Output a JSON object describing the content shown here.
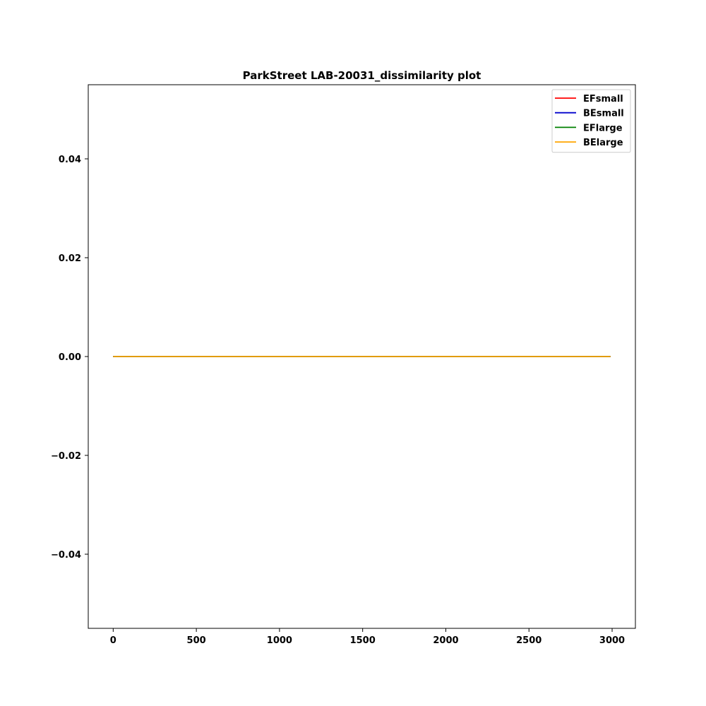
{
  "chart_data": {
    "type": "line",
    "title": "ParkStreet LAB-20031_dissimilarity plot",
    "xlabel": "",
    "ylabel": "",
    "xlim": [
      -150,
      3140
    ],
    "ylim": [
      -0.055,
      0.055
    ],
    "x_ticks": [
      0,
      500,
      1000,
      1500,
      2000,
      2500,
      3000
    ],
    "x_tick_labels": [
      "0",
      "500",
      "1000",
      "1500",
      "2000",
      "2500",
      "3000"
    ],
    "y_ticks": [
      -0.04,
      -0.02,
      0.0,
      0.02,
      0.04
    ],
    "y_tick_labels": [
      "−0.04",
      "−0.02",
      "0.00",
      "0.02",
      "0.04"
    ],
    "grid": false,
    "legend_position": "top-right",
    "series": [
      {
        "name": "EFsmall",
        "color": "#ff0000",
        "x": [
          0,
          2990
        ],
        "y": [
          0,
          0
        ]
      },
      {
        "name": "BEsmall",
        "color": "#0000cc",
        "x": [
          0,
          2990
        ],
        "y": [
          0,
          0
        ]
      },
      {
        "name": "EFlarge",
        "color": "#008000",
        "x": [
          0,
          2990
        ],
        "y": [
          0,
          0
        ]
      },
      {
        "name": "BElarge",
        "color": "#ffa500",
        "x": [
          0,
          2990
        ],
        "y": [
          0,
          0
        ]
      }
    ]
  }
}
